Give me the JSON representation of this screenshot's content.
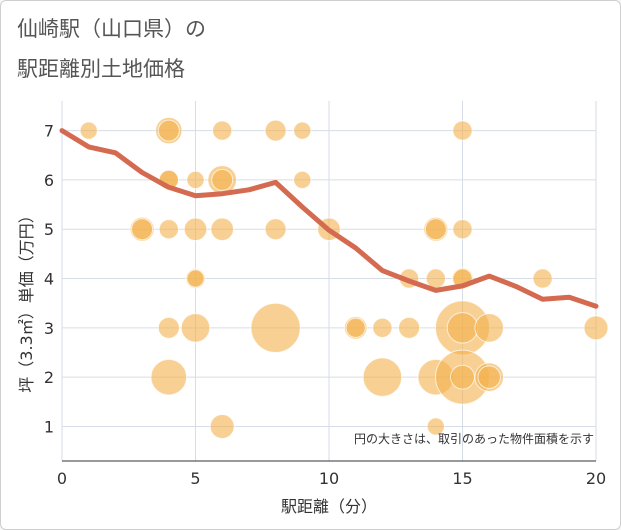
{
  "title_line1": "仙崎駅（山口県）の",
  "title_line2": "駅距離別土地価格",
  "chart_data": {
    "type": "scatter",
    "title": "仙崎駅（山口県）の駅距離別土地価格",
    "xlabel": "駅距離（分）",
    "ylabel": "坪（3.3㎡）単価（万円）",
    "xlim": [
      0,
      20
    ],
    "ylim": [
      0.3,
      7.6
    ],
    "x_ticks": [
      0,
      5,
      10,
      15,
      20
    ],
    "y_ticks": [
      1,
      2,
      3,
      4,
      5,
      6,
      7
    ],
    "note": "円の大きさは、取引のあった物件面積を示す",
    "bubble_color": "#f3b04b",
    "line_color": "#d46a50",
    "points": [
      {
        "x": 1,
        "y": 7.0,
        "s": 1
      },
      {
        "x": 4,
        "y": 7.0,
        "s": 4
      },
      {
        "x": 4,
        "y": 7.0,
        "s": 2
      },
      {
        "x": 6,
        "y": 7.0,
        "s": 1.5
      },
      {
        "x": 8,
        "y": 7.0,
        "s": 2
      },
      {
        "x": 9,
        "y": 7.0,
        "s": 1
      },
      {
        "x": 15,
        "y": 7.0,
        "s": 1.5
      },
      {
        "x": 4,
        "y": 6.0,
        "s": 1.5
      },
      {
        "x": 4,
        "y": 6.0,
        "s": 1.5
      },
      {
        "x": 5,
        "y": 6.0,
        "s": 1
      },
      {
        "x": 6,
        "y": 6.0,
        "s": 5
      },
      {
        "x": 6,
        "y": 6.0,
        "s": 2
      },
      {
        "x": 9,
        "y": 6.0,
        "s": 1
      },
      {
        "x": 3,
        "y": 5.0,
        "s": 3
      },
      {
        "x": 3,
        "y": 5.0,
        "s": 2
      },
      {
        "x": 4,
        "y": 5.0,
        "s": 1.5
      },
      {
        "x": 5,
        "y": 5.0,
        "s": 2.5
      },
      {
        "x": 6,
        "y": 5.0,
        "s": 2.5
      },
      {
        "x": 8,
        "y": 5.0,
        "s": 2
      },
      {
        "x": 10,
        "y": 5.0,
        "s": 2.5
      },
      {
        "x": 14,
        "y": 5.0,
        "s": 3
      },
      {
        "x": 14,
        "y": 5.0,
        "s": 2
      },
      {
        "x": 15,
        "y": 5.0,
        "s": 1.5
      },
      {
        "x": 5,
        "y": 4.0,
        "s": 1.5
      },
      {
        "x": 5,
        "y": 4.0,
        "s": 1
      },
      {
        "x": 13,
        "y": 4.0,
        "s": 1.5
      },
      {
        "x": 14,
        "y": 4.0,
        "s": 1.5
      },
      {
        "x": 15,
        "y": 4.0,
        "s": 2
      },
      {
        "x": 15,
        "y": 4.0,
        "s": 1.5
      },
      {
        "x": 18,
        "y": 4.0,
        "s": 1.5
      },
      {
        "x": 4,
        "y": 3.0,
        "s": 2
      },
      {
        "x": 5,
        "y": 3.0,
        "s": 5
      },
      {
        "x": 8,
        "y": 3.0,
        "s": 20
      },
      {
        "x": 11,
        "y": 3.0,
        "s": 2.5
      },
      {
        "x": 11,
        "y": 3.0,
        "s": 1.5
      },
      {
        "x": 12,
        "y": 3.0,
        "s": 1.5
      },
      {
        "x": 13,
        "y": 3.0,
        "s": 2
      },
      {
        "x": 15,
        "y": 3.0,
        "s": 25
      },
      {
        "x": 15,
        "y": 3.0,
        "s": 6
      },
      {
        "x": 16,
        "y": 3.0,
        "s": 5
      },
      {
        "x": 20,
        "y": 3.0,
        "s": 3
      },
      {
        "x": 4,
        "y": 2.0,
        "s": 9
      },
      {
        "x": 12,
        "y": 2.0,
        "s": 11
      },
      {
        "x": 14,
        "y": 2.0,
        "s": 9
      },
      {
        "x": 15,
        "y": 2.0,
        "s": 25
      },
      {
        "x": 15,
        "y": 2.0,
        "s": 3
      },
      {
        "x": 16,
        "y": 2.0,
        "s": 5
      },
      {
        "x": 16,
        "y": 2.0,
        "s": 2.5
      },
      {
        "x": 6,
        "y": 1.0,
        "s": 3
      },
      {
        "x": 14,
        "y": 1.0,
        "s": 1
      }
    ],
    "trend_line": {
      "x": [
        0,
        1,
        2,
        3,
        4,
        5,
        6,
        7,
        8,
        9,
        10,
        11,
        12,
        13,
        14,
        15,
        16,
        17,
        18,
        19,
        20
      ],
      "y": [
        7.0,
        6.67,
        6.55,
        6.15,
        5.85,
        5.68,
        5.72,
        5.8,
        5.95,
        5.45,
        4.98,
        4.62,
        4.16,
        3.95,
        3.76,
        3.85,
        4.05,
        3.84,
        3.58,
        3.62,
        3.44
      ]
    }
  }
}
